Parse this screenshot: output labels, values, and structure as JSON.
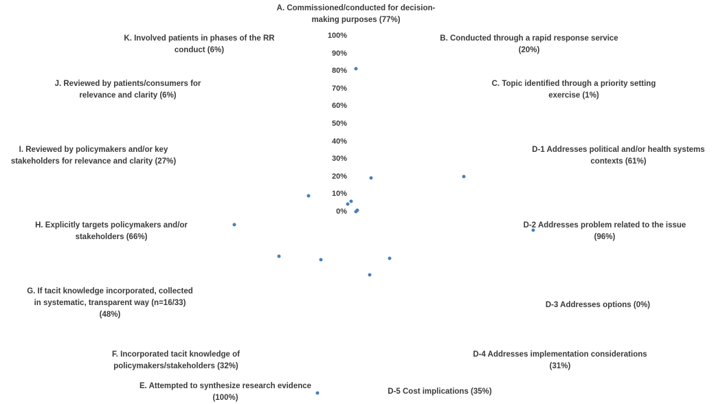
{
  "chart_data": {
    "type": "radar",
    "ylim": [
      0,
      100
    ],
    "grid": false,
    "marker_color": "#4a7ebb",
    "tick_labels": [
      "0%",
      "10%",
      "20%",
      "30%",
      "40%",
      "50%",
      "60%",
      "70%",
      "80%",
      "90%",
      "100%"
    ],
    "categories": [
      "A. Commissioned/conducted for decision-\nmaking purposes (77%)",
      "B. Conducted through a rapid response service\n(20%)",
      "C. Topic identified through a priority setting\nexercise  (1%)",
      "D-1 Addresses political and/or health systems\ncontexts (61%)",
      "D-2 Addresses problem related to the issue\n(96%)",
      "D-3 Addresses options (0%)",
      "D-4 Addresses implementation considerations\n(31%)",
      "D-5 Cost implications (35%)",
      "E. Attempted to synthesize research evidence\n(100%)",
      "F. Incorporated tacit knowledge of\npolicymakers/stakeholders (32%)",
      "G. If tacit knowledge incorporated,  collected\nin systematic, transparent way (n=16/33)\n(48%)",
      "H. Explicitly targets policymakers and/or\nstakeholders (66%)",
      "I. Reviewed by policymakers and/or key\nstakeholders for relevance and clarity (27%)",
      "J. Reviewed by patients/consumers for\nrelevance and clarity (6%)",
      "K. Involved patients in phases of the RR\nconduct (6%)"
    ],
    "series": [
      {
        "values": [
          77,
          20,
          1,
          61,
          96,
          0,
          31,
          35,
          100,
          32,
          48,
          66,
          27,
          6,
          6
        ]
      }
    ]
  }
}
